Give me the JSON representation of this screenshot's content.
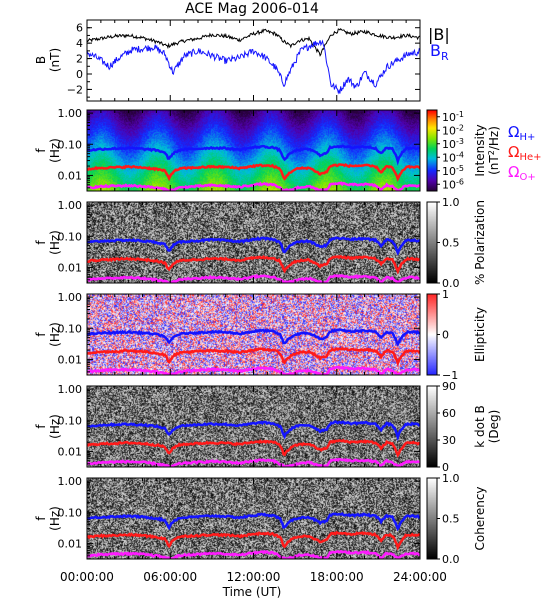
{
  "chart_data": {
    "type": "multi-panel",
    "title": "ACE Mag 2006-014",
    "xlabel": "Time (UT)",
    "x_ticks": [
      "00:00:00",
      "06:00:00",
      "12:00:00",
      "18:00:00",
      "24:00:00"
    ],
    "xlim_hours": [
      0,
      24
    ],
    "colors": {
      "black": "#000000",
      "blue": "#1414ff",
      "red": "#ff1a1a",
      "magenta": "#ff1aff"
    },
    "panel1": {
      "type": "line",
      "ylabel": "B",
      "yunit": "(nT)",
      "ylim": [
        -3.5,
        7
      ],
      "y_ticks": [
        "6",
        "4",
        "2",
        "0",
        "−2"
      ],
      "y_tick_values": [
        6,
        4,
        2,
        0,
        -2
      ],
      "series": [
        {
          "name": "|B|",
          "color": "#000000",
          "x": [
            0,
            1,
            2,
            3,
            4,
            5,
            5.8,
            6.3,
            7,
            8,
            9,
            10,
            11,
            12,
            12.8,
            13.6,
            14.2,
            14.7,
            15.2,
            16,
            16.8,
            17.6,
            18.2,
            19,
            20,
            21,
            22,
            23,
            24
          ],
          "y": [
            4.3,
            4.6,
            4.9,
            5.0,
            4.7,
            4.2,
            3.6,
            3.9,
            4.3,
            4.6,
            5.1,
            4.9,
            4.4,
            5.2,
            5.6,
            5.2,
            4.2,
            3.6,
            4.3,
            4.6,
            2.5,
            5.1,
            5.7,
            5.2,
            5.5,
            5.0,
            4.7,
            5.0,
            4.7
          ]
        },
        {
          "name": "B",
          "color": "#1414ff",
          "x": [
            0,
            0.8,
            1.6,
            2.4,
            3.2,
            4,
            4.8,
            5.6,
            6.2,
            7,
            8,
            9,
            10,
            11,
            12,
            12.8,
            13.6,
            14.2,
            14.7,
            15.4,
            16.2,
            17,
            17.6,
            18.2,
            18.8,
            19.4,
            20,
            20.8,
            21.6,
            22.4,
            23.2,
            24
          ],
          "y": [
            2.8,
            2.0,
            1.0,
            2.2,
            3.1,
            3.3,
            3.5,
            2.6,
            0.2,
            2.3,
            3.0,
            2.4,
            1.7,
            2.1,
            3.0,
            2.2,
            0.8,
            -1.3,
            0.6,
            3.0,
            3.8,
            4.3,
            -1.4,
            -2.2,
            -0.6,
            -1.7,
            0.2,
            -1.3,
            0.9,
            1.8,
            2.6,
            2.9
          ]
        }
      ],
      "legend": [
        {
          "label": "|B|",
          "color": "#000000"
        },
        {
          "label": "B",
          "sub": "R",
          "color": "#1414ff"
        }
      ]
    },
    "overlay_curves": {
      "ylim_log10": [
        -2.5,
        0.1
      ],
      "y_ticks": [
        "1.00",
        "0.10",
        "0.01"
      ],
      "y_tick_values": [
        1.0,
        0.1,
        0.01
      ],
      "ylabel": "f",
      "yunit": "(Hz)",
      "series": [
        {
          "name": "Ω",
          "sub": "H+",
          "color": "#1414ff",
          "x": [
            0,
            1,
            2,
            3,
            4,
            5,
            5.6,
            5.9,
            6.2,
            6.6,
            7,
            8,
            9,
            10,
            11,
            12,
            12.6,
            13.4,
            13.9,
            14.2,
            14.5,
            14.8,
            15.2,
            16,
            16.8,
            17.3,
            17.5,
            17.8,
            18.3,
            19,
            20,
            20.8,
            21.2,
            21.6,
            22,
            22.4,
            23,
            23.5,
            24
          ],
          "y": [
            0.064,
            0.07,
            0.073,
            0.075,
            0.071,
            0.064,
            0.055,
            0.032,
            0.051,
            0.063,
            0.068,
            0.072,
            0.077,
            0.074,
            0.067,
            0.079,
            0.085,
            0.079,
            0.064,
            0.03,
            0.044,
            0.056,
            0.066,
            0.07,
            0.045,
            0.052,
            0.078,
            0.085,
            0.087,
            0.079,
            0.084,
            0.075,
            0.05,
            0.078,
            0.07,
            0.03,
            0.074,
            0.076,
            0.071
          ]
        },
        {
          "name": "Ω",
          "sub": "He+",
          "color": "#ff1a1a",
          "x": [
            0,
            1,
            2,
            3,
            4,
            5,
            5.6,
            5.9,
            6.2,
            6.6,
            7,
            8,
            9,
            10,
            11,
            12,
            12.6,
            13.4,
            13.9,
            14.2,
            14.5,
            14.8,
            15.2,
            16,
            16.8,
            17.3,
            17.5,
            17.8,
            18.3,
            19,
            20,
            20.8,
            21.2,
            21.6,
            22,
            22.4,
            23,
            23.5,
            24
          ],
          "y": [
            0.016,
            0.0175,
            0.018,
            0.019,
            0.018,
            0.016,
            0.014,
            0.008,
            0.013,
            0.016,
            0.017,
            0.018,
            0.019,
            0.0185,
            0.017,
            0.02,
            0.021,
            0.02,
            0.016,
            0.0075,
            0.011,
            0.014,
            0.0165,
            0.0175,
            0.011,
            0.013,
            0.0195,
            0.021,
            0.022,
            0.02,
            0.021,
            0.019,
            0.0125,
            0.0195,
            0.0175,
            0.0075,
            0.0185,
            0.019,
            0.018
          ]
        },
        {
          "name": "Ω",
          "sub": "O+",
          "color": "#ff1aff",
          "x": [
            0,
            1,
            2,
            3,
            4,
            5,
            5.6,
            5.9,
            6.2,
            6.6,
            7,
            8,
            9,
            10,
            11,
            12,
            12.6,
            13.4,
            13.9,
            14.2,
            14.5,
            14.8,
            15.2,
            16,
            16.8,
            17.3,
            17.5,
            17.8,
            18.3,
            19,
            20,
            20.8,
            21.2,
            21.6,
            22,
            22.4,
            23,
            23.5,
            24
          ],
          "y": [
            0.004,
            0.0044,
            0.0046,
            0.0047,
            0.0045,
            0.004,
            0.0036,
            0.0033,
            0.0034,
            0.004,
            0.0042,
            0.0045,
            0.0048,
            0.0046,
            0.0042,
            0.005,
            0.0053,
            0.005,
            0.004,
            0.0033,
            0.0034,
            0.0035,
            0.0041,
            0.0044,
            0.0034,
            0.0034,
            0.0049,
            0.0053,
            0.0055,
            0.005,
            0.0052,
            0.0047,
            0.0034,
            0.0049,
            0.0044,
            0.0033,
            0.0046,
            0.0048,
            0.0045
          ]
        }
      ]
    },
    "spectrogram_panels": [
      {
        "type": "heatmap",
        "colorbar": "rainbow",
        "colorbar_label": "Intensity",
        "colorbar_label2": "(nT",
        "colorbar_label2_sup": "2",
        "colorbar_label2_rest": "/Hz)",
        "colorbar_ticks": [
          {
            "base": "10",
            "exp": "-1"
          },
          {
            "base": "10",
            "exp": "-2"
          },
          {
            "base": "10",
            "exp": "-3"
          },
          {
            "base": "10",
            "exp": "-4"
          },
          {
            "base": "10",
            "exp": "-5"
          },
          {
            "base": "10",
            "exp": "-6"
          }
        ],
        "colorbar_tick_values": [
          -1,
          -2,
          -3,
          -4,
          -5,
          -6
        ],
        "colorbar_log10_range": [
          -6.5,
          -0.5
        ]
      },
      {
        "type": "heatmap",
        "colorbar": "gray",
        "colorbar_label": "% Polarization",
        "colorbar_ticks": [
          "1.0",
          "0.5",
          "0.0"
        ],
        "colorbar_tick_values": [
          1.0,
          0.5,
          0.0
        ],
        "colorbar_range": [
          0,
          1
        ]
      },
      {
        "type": "heatmap",
        "colorbar": "bluewhitered",
        "colorbar_label": "Ellipticity",
        "colorbar_ticks": [
          "1",
          "0",
          "−1"
        ],
        "colorbar_tick_values": [
          1,
          0,
          -1
        ],
        "colorbar_range": [
          -1,
          1
        ]
      },
      {
        "type": "heatmap",
        "colorbar": "gray",
        "colorbar_label": "k dot B",
        "colorbar_label2": "(Deg)",
        "colorbar_ticks": [
          "90",
          "60",
          "30",
          "0"
        ],
        "colorbar_tick_values": [
          90,
          60,
          30,
          0
        ],
        "colorbar_range": [
          0,
          90
        ]
      },
      {
        "type": "heatmap",
        "colorbar": "gray",
        "colorbar_label": "Coherency",
        "colorbar_ticks": [
          "1.0",
          "0.5",
          "0.0"
        ],
        "colorbar_tick_values": [
          1.0,
          0.5,
          0.0
        ],
        "colorbar_range": [
          0,
          1
        ]
      }
    ]
  }
}
